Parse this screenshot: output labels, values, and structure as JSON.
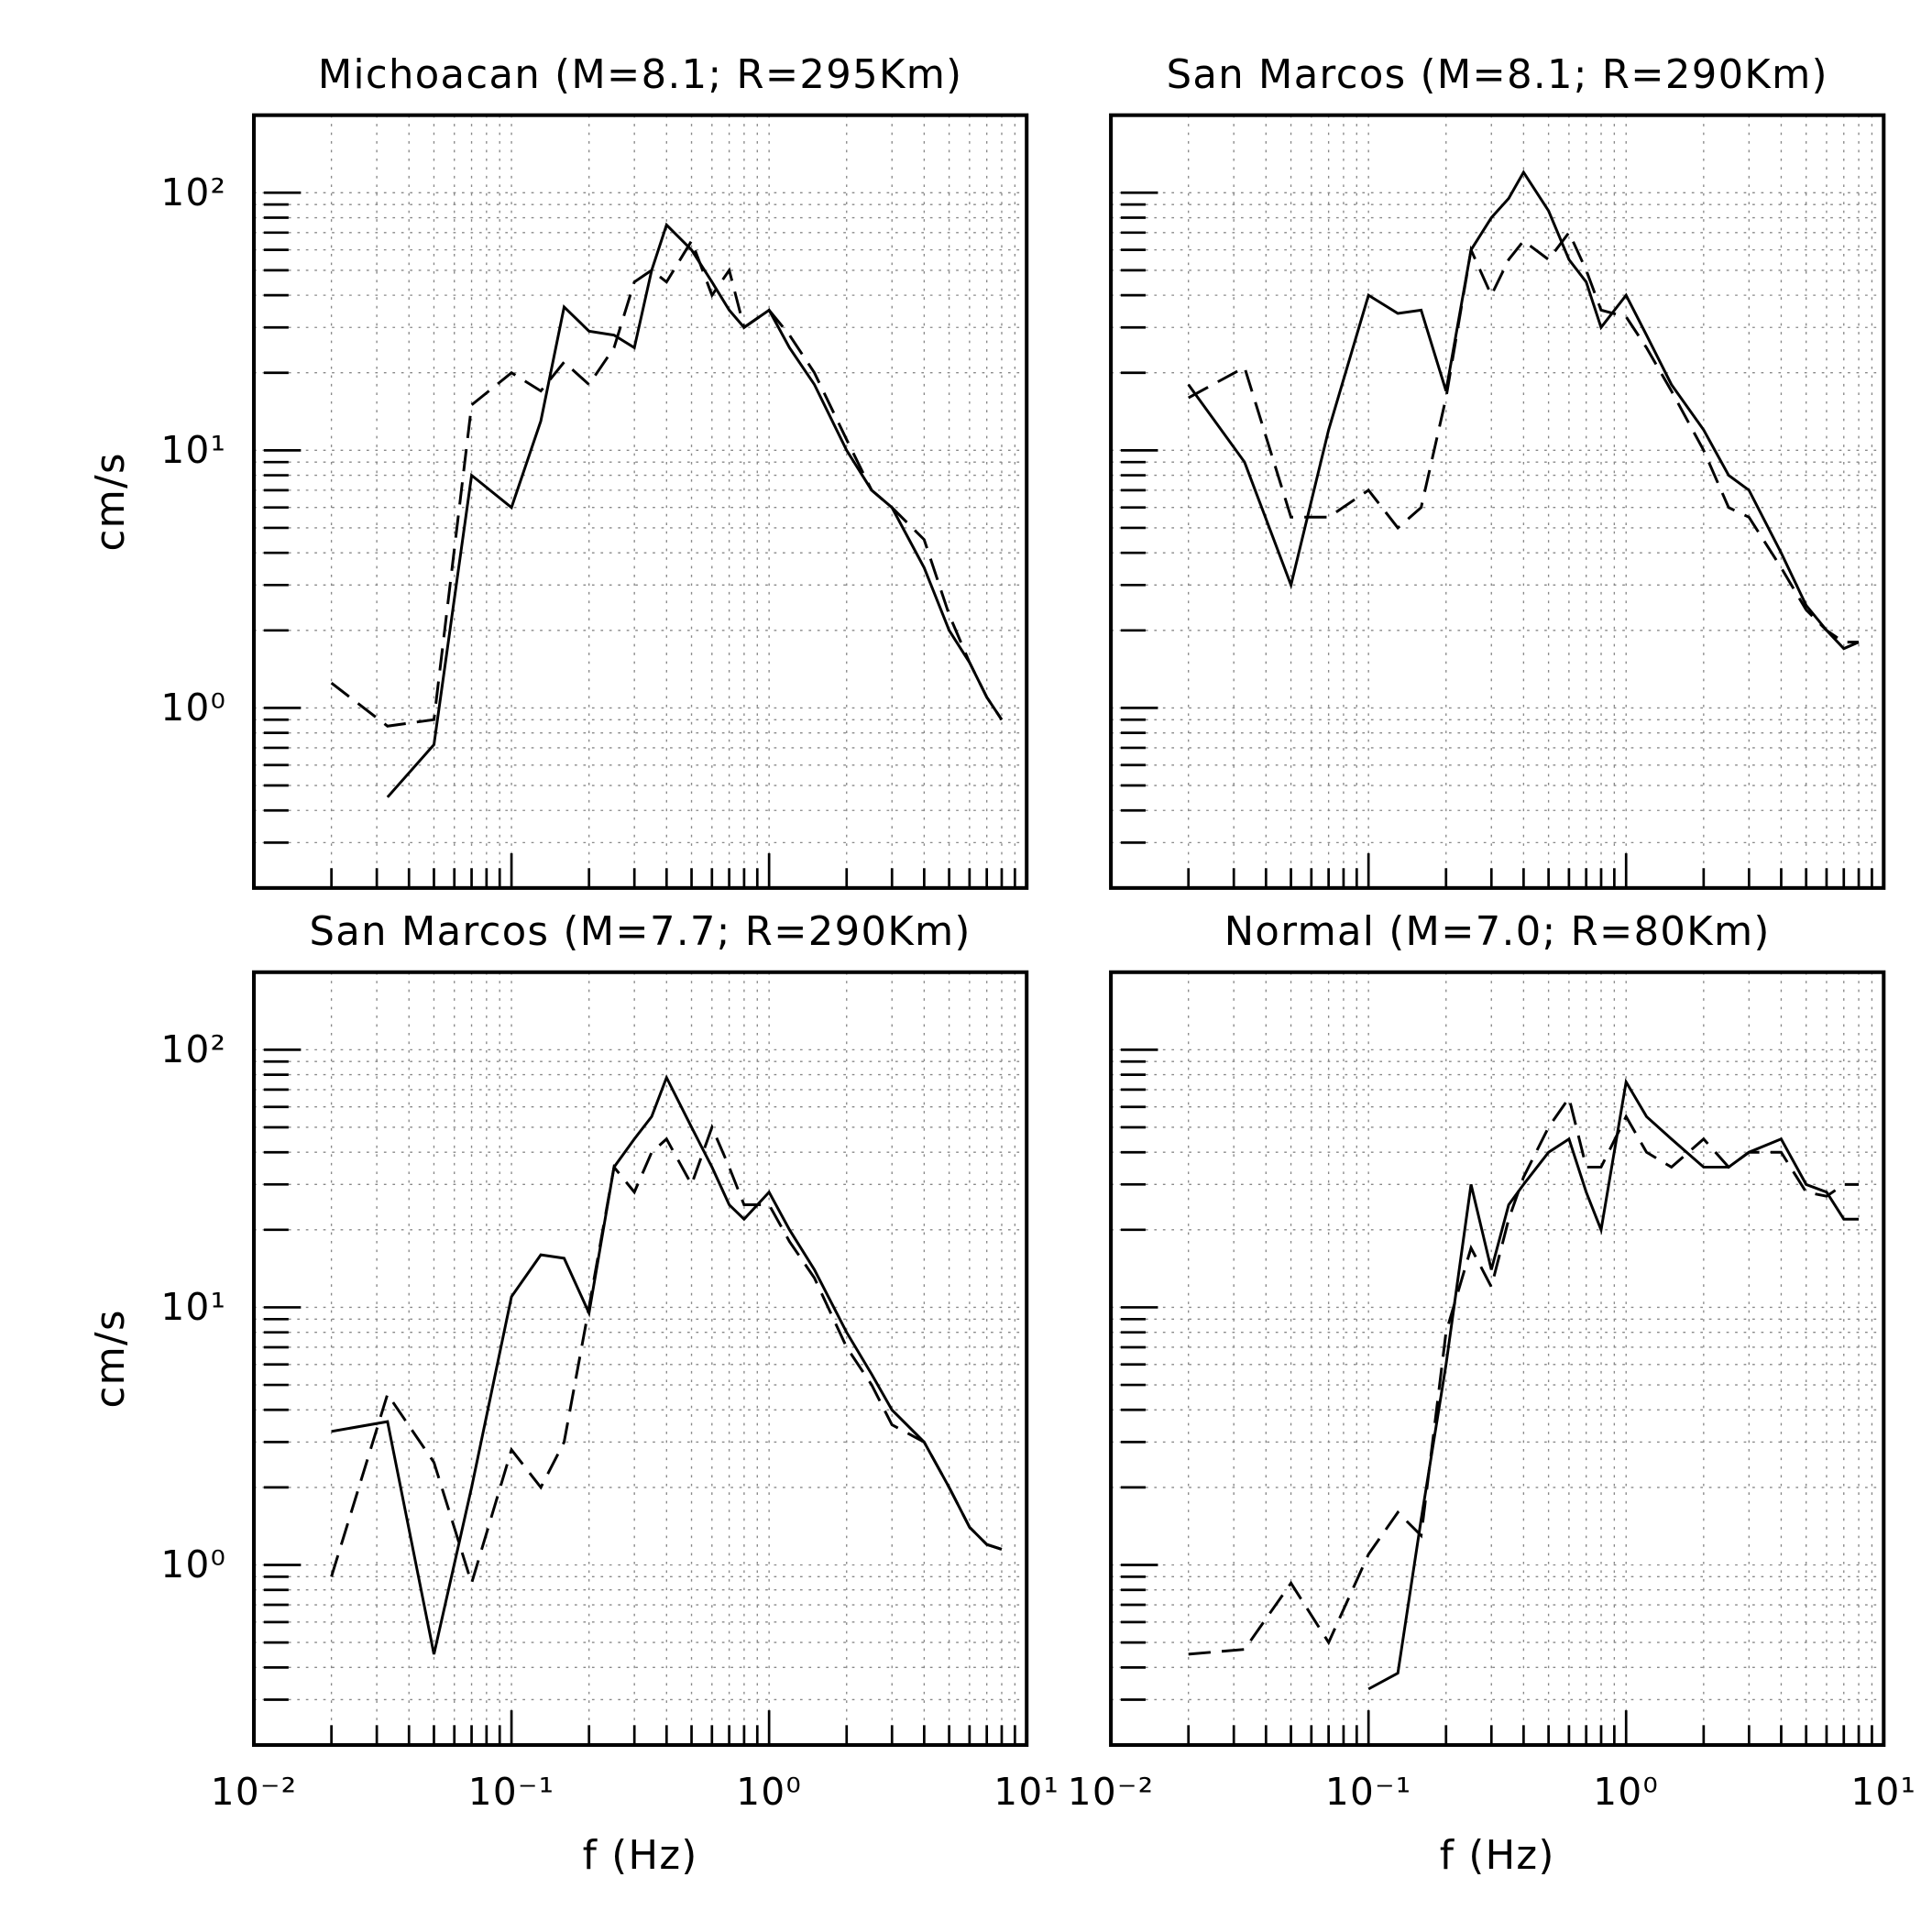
{
  "chart_data": [
    {
      "type": "line",
      "title": "Michoacan (M=8.1; R=295Km)",
      "y_label": "cm/s",
      "xlog": true,
      "ylog": true,
      "grid": true,
      "xlim": [
        0.01,
        10
      ],
      "ylim": [
        0.2,
        200
      ],
      "xticks": [
        0.01,
        0.1,
        1,
        10
      ],
      "yticks": [
        {
          "value": 1,
          "label": "10⁰"
        },
        {
          "value": 10,
          "label": "10¹"
        },
        {
          "value": 100,
          "label": "10²"
        }
      ],
      "x": [
        0.02,
        0.033,
        0.05,
        0.07,
        0.1,
        0.13,
        0.16,
        0.2,
        0.25,
        0.3,
        0.35,
        0.4,
        0.5,
        0.6,
        0.7,
        0.8,
        1.0,
        1.2,
        1.5,
        2,
        2.5,
        3,
        4,
        5,
        6,
        7,
        8
      ],
      "series": [
        {
          "color": "#000000",
          "style": "solid",
          "values": [
            null,
            0.45,
            0.72,
            8,
            6,
            13,
            36,
            29,
            28,
            25,
            50,
            75,
            60,
            45,
            35,
            30,
            35,
            25,
            18,
            10,
            7,
            6,
            3.5,
            2,
            1.5,
            1.1,
            0.9
          ]
        },
        {
          "color": "#000000",
          "style": "dashed",
          "values": [
            1.25,
            0.85,
            0.9,
            15,
            20,
            17,
            22,
            18,
            25,
            45,
            50,
            45,
            65,
            40,
            50,
            30,
            35,
            28,
            20,
            11,
            7,
            6,
            4.5,
            2.3,
            1.5,
            1.1,
            0.9
          ]
        }
      ]
    },
    {
      "type": "line",
      "title": "San Marcos (M=8.1; R=290Km)",
      "xlog": true,
      "ylog": true,
      "grid": true,
      "xlim": [
        0.01,
        10
      ],
      "ylim": [
        0.2,
        200
      ],
      "xticks": [
        0.01,
        0.1,
        1,
        10
      ],
      "yticks": [
        1,
        10,
        100
      ],
      "x": [
        0.02,
        0.033,
        0.05,
        0.07,
        0.1,
        0.13,
        0.16,
        0.2,
        0.25,
        0.3,
        0.35,
        0.4,
        0.5,
        0.6,
        0.7,
        0.8,
        1.0,
        1.2,
        1.5,
        2,
        2.5,
        3,
        4,
        5,
        6,
        7,
        8
      ],
      "series": [
        {
          "color": "#000000",
          "style": "solid",
          "values": [
            18,
            9,
            3,
            12,
            40,
            34,
            35,
            17,
            60,
            80,
            95,
            120,
            85,
            55,
            45,
            30,
            40,
            28,
            18,
            12,
            8,
            7,
            4,
            2.5,
            2,
            1.7,
            1.8
          ]
        },
        {
          "color": "#000000",
          "style": "dashed",
          "values": [
            16,
            21,
            5.5,
            5.5,
            7,
            5,
            6,
            16,
            60,
            40,
            55,
            65,
            55,
            70,
            50,
            35,
            33,
            25,
            17,
            10,
            6,
            5.5,
            3.5,
            2.4,
            2,
            1.8,
            1.8
          ]
        }
      ]
    },
    {
      "type": "line",
      "title": "San Marcos (M=7.7; R=290Km)",
      "x_label": "f (Hz)",
      "y_label": "cm/s",
      "xlog": true,
      "ylog": true,
      "grid": true,
      "xlim": [
        0.01,
        10
      ],
      "ylim": [
        0.2,
        200
      ],
      "xticks": [
        {
          "value": 0.01,
          "label": "10⁻²"
        },
        {
          "value": 0.1,
          "label": "10⁻¹"
        },
        {
          "value": 1,
          "label": "10⁰"
        },
        {
          "value": 10,
          "label": "10¹"
        }
      ],
      "yticks": [
        {
          "value": 1,
          "label": "10⁰"
        },
        {
          "value": 10,
          "label": "10¹"
        },
        {
          "value": 100,
          "label": "10²"
        }
      ],
      "x": [
        0.02,
        0.033,
        0.05,
        0.07,
        0.1,
        0.13,
        0.16,
        0.2,
        0.25,
        0.3,
        0.35,
        0.4,
        0.5,
        0.6,
        0.7,
        0.8,
        1.0,
        1.2,
        1.5,
        2,
        2.5,
        3,
        4,
        5,
        6,
        7,
        8
      ],
      "series": [
        {
          "color": "#000000",
          "style": "solid",
          "values": [
            3.3,
            3.6,
            0.45,
            2,
            11,
            16,
            15.5,
            9.5,
            35,
            45,
            55,
            78,
            50,
            35,
            25,
            22,
            28,
            20,
            14,
            8,
            5.5,
            4,
            3,
            2,
            1.4,
            1.2,
            1.15
          ]
        },
        {
          "color": "#000000",
          "style": "dashed",
          "values": [
            0.9,
            4.6,
            2.5,
            0.85,
            2.8,
            2,
            3,
            10,
            35,
            28,
            40,
            45,
            30,
            50,
            35,
            25,
            25,
            18,
            13,
            7,
            5,
            3.5,
            3,
            2,
            1.4,
            1.2,
            1.15
          ]
        }
      ]
    },
    {
      "type": "line",
      "title": "Normal (M=7.0; R=80Km)",
      "x_label": "f (Hz)",
      "xlog": true,
      "ylog": true,
      "grid": true,
      "xlim": [
        0.01,
        10
      ],
      "ylim": [
        0.2,
        200
      ],
      "xticks": [
        {
          "value": 0.01,
          "label": "10⁻²"
        },
        {
          "value": 0.1,
          "label": "10⁻¹"
        },
        {
          "value": 1,
          "label": "10⁰"
        },
        {
          "value": 10,
          "label": "10¹"
        }
      ],
      "yticks": [
        1,
        10,
        100
      ],
      "x": [
        0.02,
        0.033,
        0.05,
        0.07,
        0.1,
        0.13,
        0.16,
        0.2,
        0.25,
        0.3,
        0.35,
        0.4,
        0.5,
        0.6,
        0.7,
        0.8,
        1.0,
        1.2,
        1.5,
        2,
        2.5,
        3,
        4,
        5,
        6,
        7,
        8
      ],
      "series": [
        {
          "color": "#000000",
          "style": "solid",
          "values": [
            null,
            null,
            null,
            null,
            0.33,
            0.38,
            1.5,
            6,
            30,
            14,
            25,
            30,
            40,
            45,
            28,
            20,
            75,
            55,
            45,
            35,
            35,
            40,
            45,
            30,
            28,
            22,
            22
          ]
        },
        {
          "color": "#000000",
          "style": "dashed",
          "values": [
            0.45,
            0.47,
            0.85,
            0.5,
            1.1,
            1.6,
            1.3,
            8,
            17,
            12,
            22,
            32,
            50,
            65,
            35,
            35,
            55,
            40,
            35,
            45,
            35,
            40,
            40,
            28,
            27,
            30,
            30
          ]
        }
      ]
    }
  ]
}
